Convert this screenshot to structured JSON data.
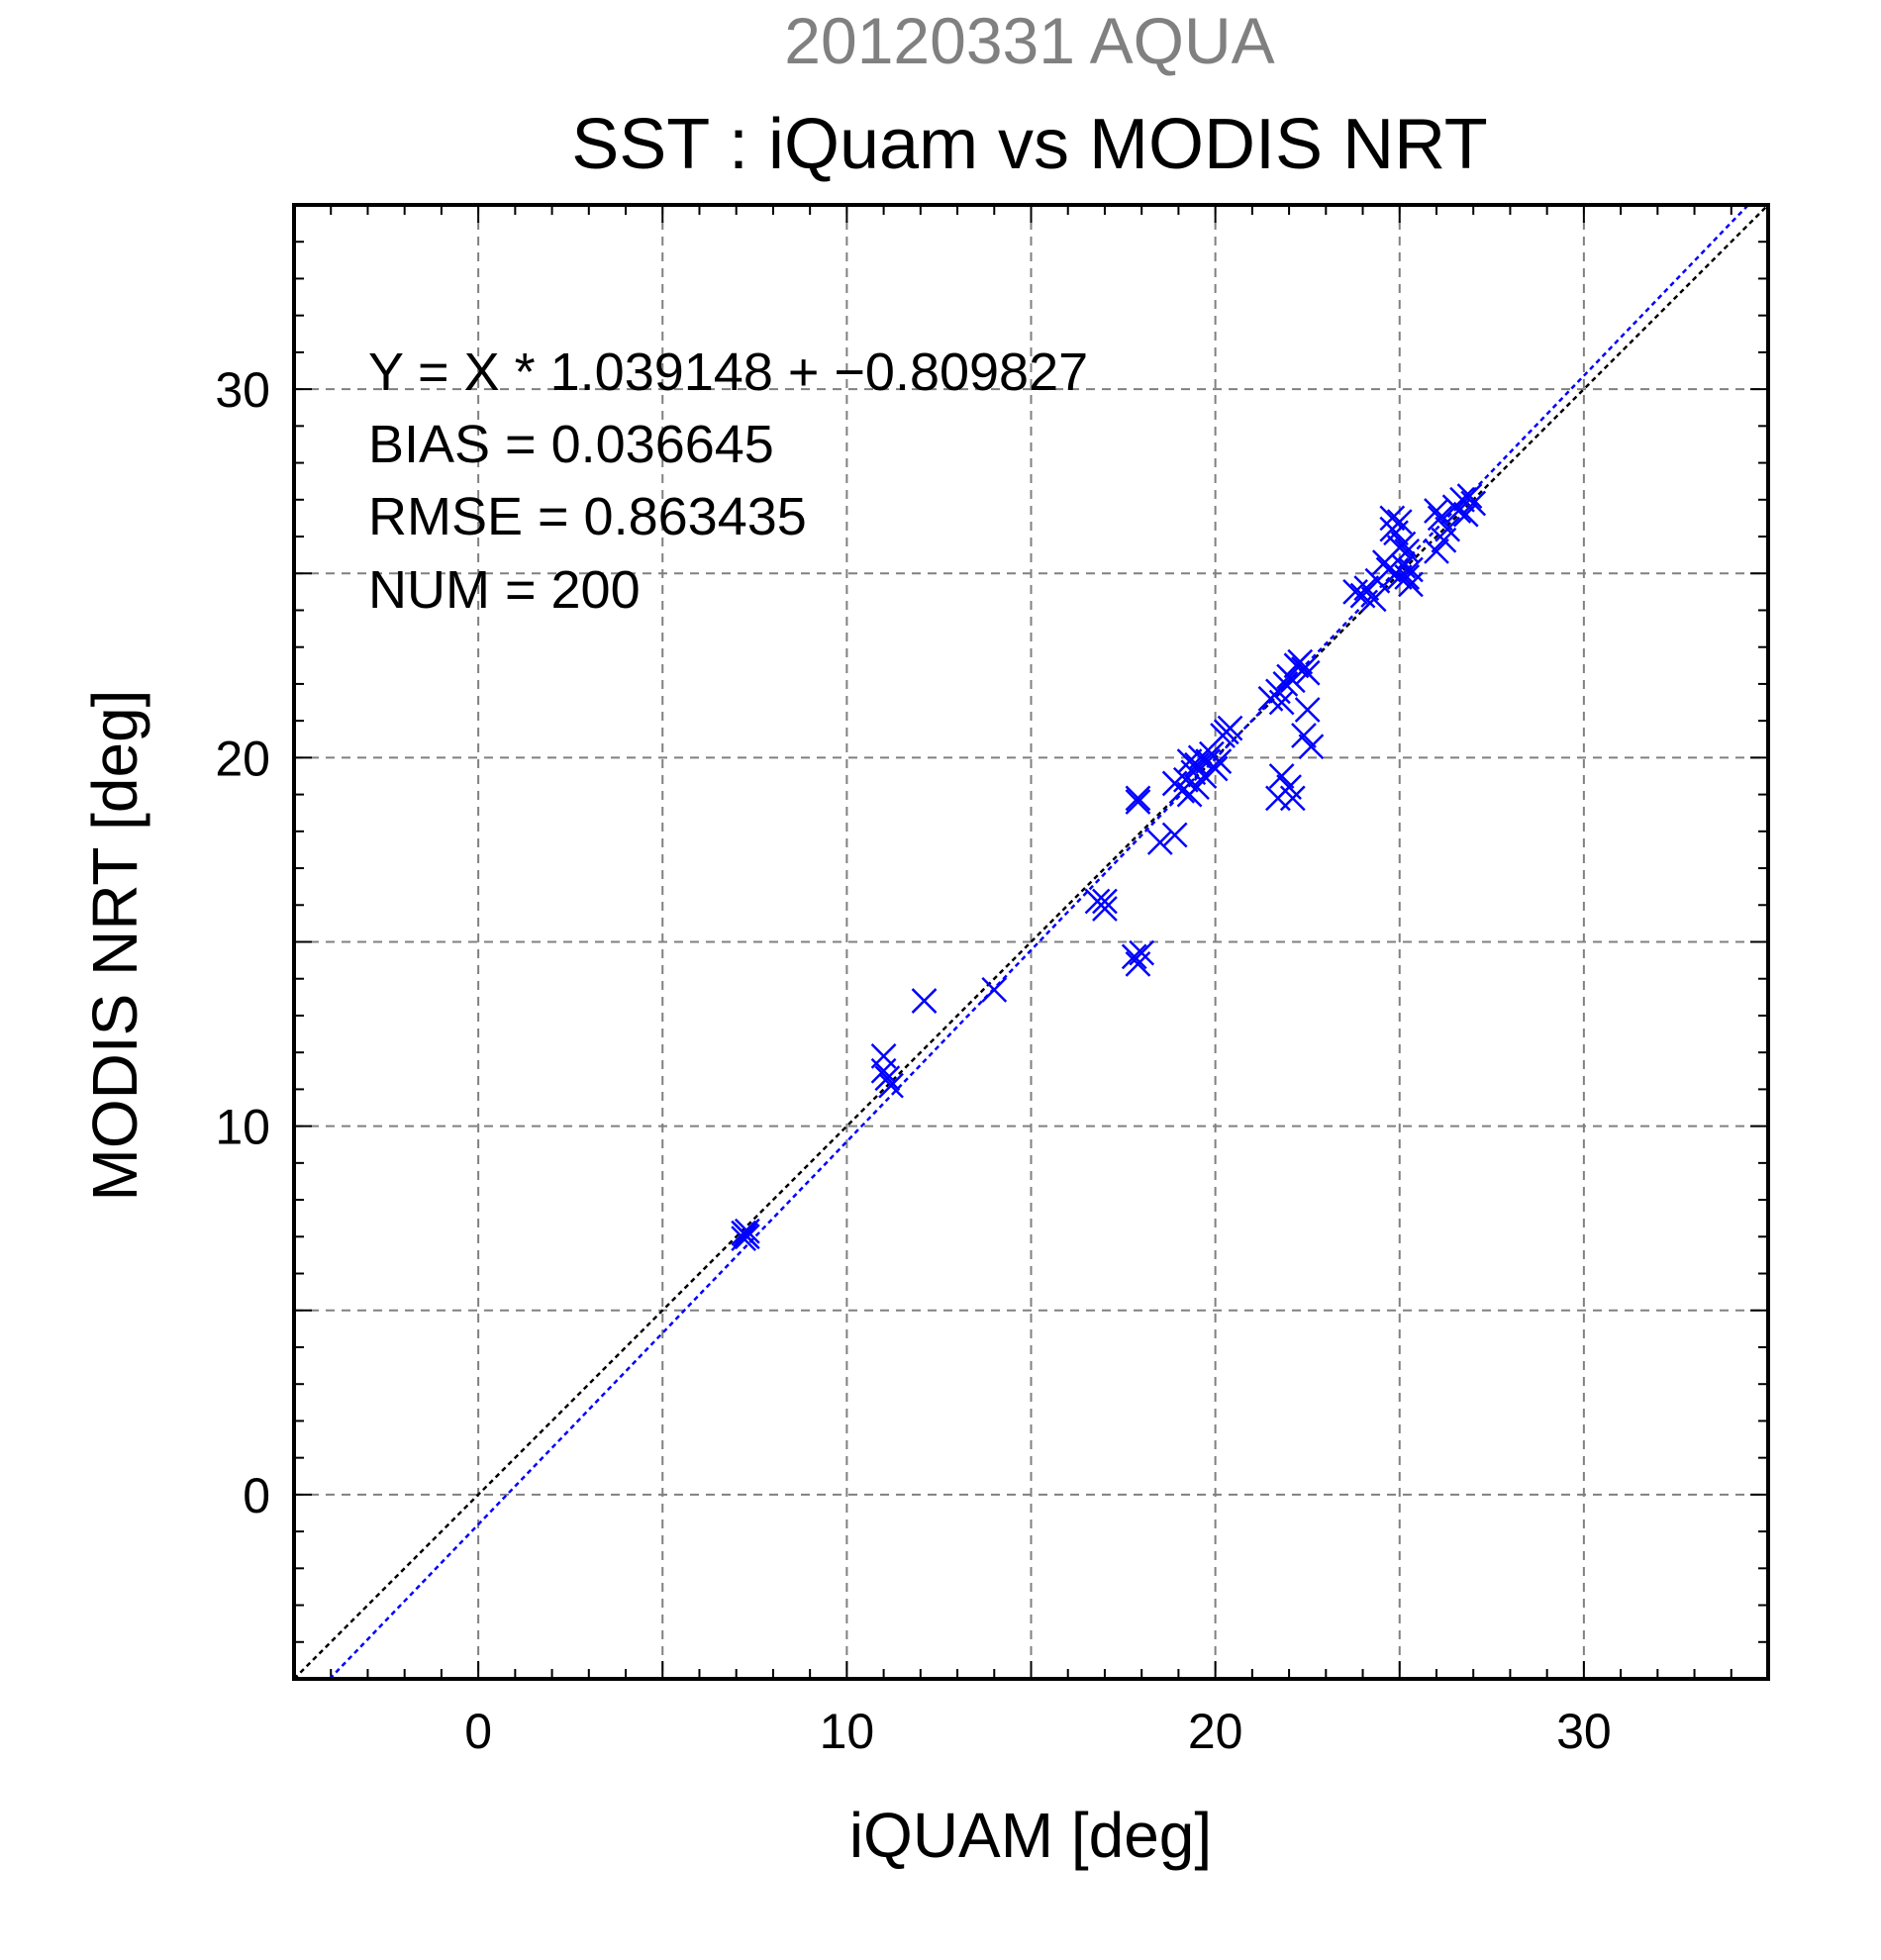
{
  "chart_data": {
    "type": "scatter",
    "title_top": "20120331 AQUA",
    "title": "SST : iQuam vs MODIS NRT",
    "xlabel": "iQUAM [deg]",
    "ylabel": "MODIS NRT [deg]",
    "xlim": [
      -5,
      35
    ],
    "ylim": [
      -5,
      35
    ],
    "x_ticks": [
      0,
      10,
      20,
      30
    ],
    "y_ticks": [
      0,
      10,
      20,
      30
    ],
    "x_tick_labels": [
      "0",
      "10",
      "20",
      "30"
    ],
    "y_tick_labels": [
      "0",
      "10",
      "20",
      "30"
    ],
    "grid": true,
    "marker": "x",
    "colors": {
      "points": "#0000ff",
      "fit_line": "#0000ff",
      "identity_line": "#000000",
      "title_top": "#808080"
    },
    "stats": {
      "regression": "Y = X * 1.039148 + −0.809827",
      "bias": "BIAS = 0.036645",
      "rmse": "RMSE = 0.863435",
      "num": "NUM = 200"
    },
    "lines": [
      {
        "kind": "identity",
        "slope": 1,
        "intercept": 0
      },
      {
        "kind": "fit",
        "slope": 1.039148,
        "intercept": -0.809827
      }
    ],
    "points": [
      [
        7.2,
        7.1
      ],
      [
        7.3,
        7.0
      ],
      [
        7.25,
        7.05
      ],
      [
        7.2,
        6.95
      ],
      [
        7.3,
        7.15
      ],
      [
        11.0,
        11.9
      ],
      [
        11.0,
        11.5
      ],
      [
        11.1,
        11.3
      ],
      [
        11.2,
        11.1
      ],
      [
        12.1,
        13.4
      ],
      [
        14.0,
        13.7
      ],
      [
        16.8,
        16.1
      ],
      [
        17.0,
        15.9
      ],
      [
        17.0,
        16.1
      ],
      [
        17.8,
        14.6
      ],
      [
        17.9,
        14.4
      ],
      [
        18.0,
        14.7
      ],
      [
        17.9,
        18.8
      ],
      [
        17.9,
        18.9
      ],
      [
        18.5,
        17.7
      ],
      [
        18.9,
        17.9
      ],
      [
        18.9,
        19.3
      ],
      [
        19.1,
        19.1
      ],
      [
        19.2,
        19.4
      ],
      [
        19.3,
        19.0
      ],
      [
        19.4,
        19.6
      ],
      [
        19.5,
        19.8
      ],
      [
        19.6,
        20.0
      ],
      [
        19.7,
        19.5
      ],
      [
        19.8,
        19.9
      ],
      [
        19.9,
        20.1
      ],
      [
        20.0,
        19.7
      ],
      [
        20.1,
        19.9
      ],
      [
        19.3,
        19.9
      ],
      [
        19.5,
        19.2
      ],
      [
        20.2,
        20.6
      ],
      [
        20.4,
        20.8
      ],
      [
        20.3,
        20.7
      ],
      [
        21.5,
        21.6
      ],
      [
        21.7,
        21.8
      ],
      [
        21.8,
        21.5
      ],
      [
        21.9,
        22.0
      ],
      [
        22.0,
        22.2
      ],
      [
        22.2,
        22.5
      ],
      [
        22.4,
        22.4
      ],
      [
        22.5,
        22.3
      ],
      [
        22.3,
        22.6
      ],
      [
        22.1,
        22.1
      ],
      [
        21.7,
        18.9
      ],
      [
        21.8,
        19.5
      ],
      [
        22.0,
        19.2
      ],
      [
        22.1,
        18.9
      ],
      [
        22.4,
        20.6
      ],
      [
        22.6,
        20.3
      ],
      [
        22.5,
        21.3
      ],
      [
        23.8,
        24.5
      ],
      [
        24.0,
        24.4
      ],
      [
        24.1,
        24.6
      ],
      [
        24.3,
        24.3
      ],
      [
        24.4,
        24.8
      ],
      [
        24.6,
        25.3
      ],
      [
        24.7,
        25.1
      ],
      [
        24.8,
        26.2
      ],
      [
        24.8,
        26.5
      ],
      [
        24.9,
        26.1
      ],
      [
        25.0,
        26.4
      ],
      [
        24.9,
        25.0
      ],
      [
        25.0,
        24.9
      ],
      [
        25.1,
        25.2
      ],
      [
        25.2,
        25.6
      ],
      [
        25.3,
        24.7
      ],
      [
        25.2,
        24.9
      ],
      [
        25.0,
        25.7
      ],
      [
        25.1,
        25.8
      ],
      [
        25.3,
        25.1
      ],
      [
        26.0,
        26.7
      ],
      [
        26.1,
        26.5
      ],
      [
        26.0,
        25.6
      ],
      [
        26.2,
        25.9
      ],
      [
        26.3,
        26.2
      ],
      [
        26.5,
        26.8
      ],
      [
        26.7,
        27.0
      ],
      [
        26.8,
        26.6
      ],
      [
        26.9,
        27.1
      ],
      [
        27.0,
        26.9
      ],
      [
        26.6,
        26.7
      ]
    ]
  }
}
